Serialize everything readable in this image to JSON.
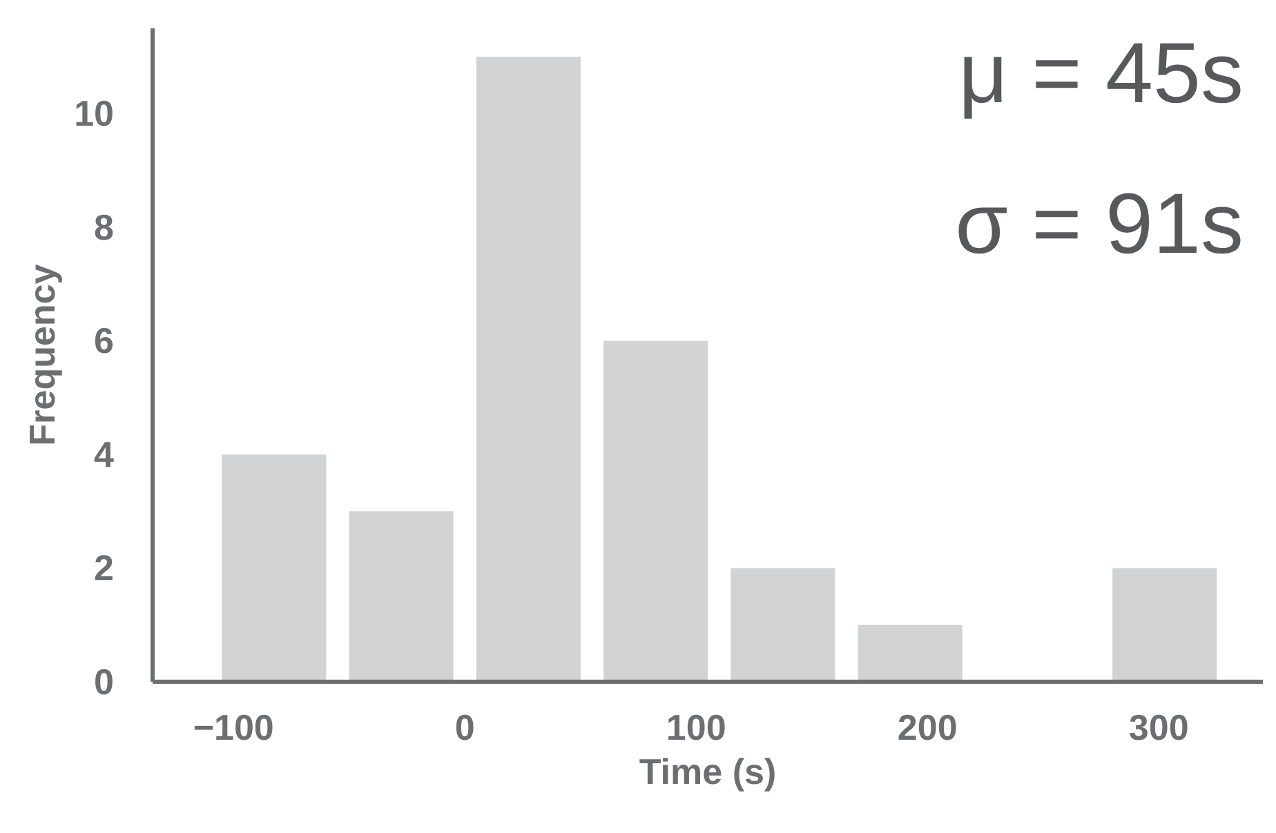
{
  "chart_data": {
    "type": "histogram",
    "xlabel": "Time (s)",
    "ylabel": "Frequency",
    "bins": [
      -110,
      -55,
      0,
      55,
      110,
      165,
      220,
      275,
      330
    ],
    "values": [
      4,
      3,
      11,
      6,
      2,
      1,
      0,
      2
    ],
    "color": "#d1d2d4",
    "xlim": [
      -135,
      345
    ],
    "xticks": [
      -100,
      0,
      100,
      200,
      300
    ],
    "ylim": [
      0,
      11.5
    ],
    "yticks": [
      0,
      2,
      4,
      6,
      8,
      10
    ],
    "grid": false,
    "annotations": [
      "μ = 45s",
      "σ = 91s"
    ]
  }
}
